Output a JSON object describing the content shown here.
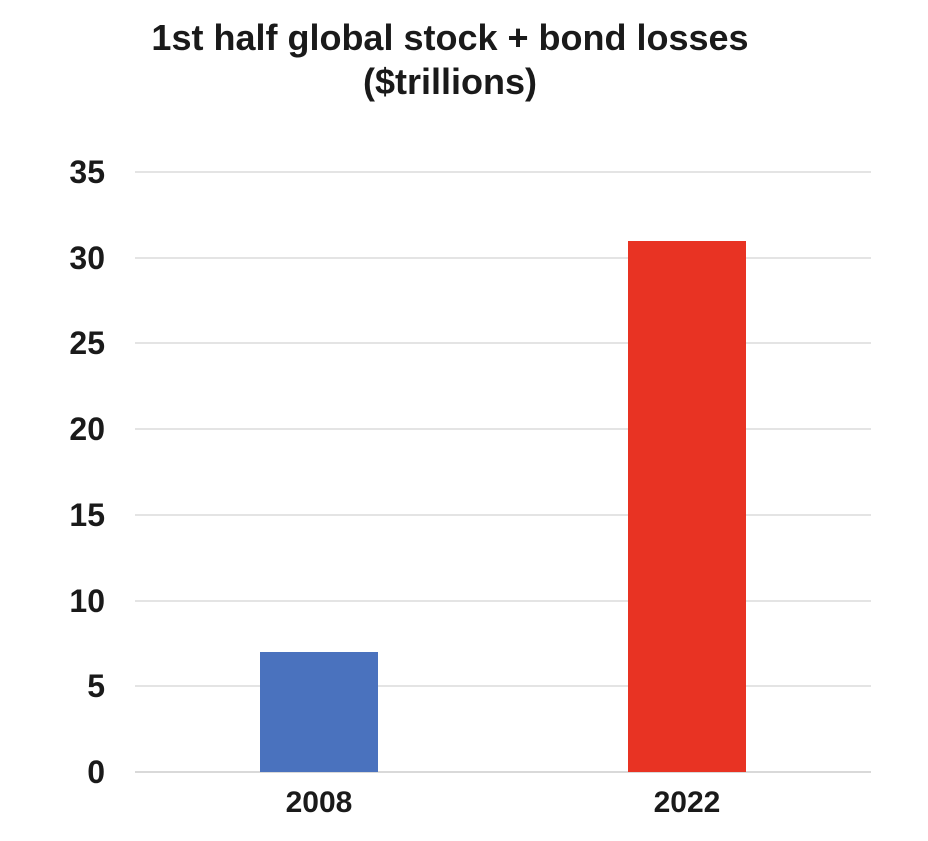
{
  "page": {
    "background": "#ffffff",
    "text_color": "#1a1a1a"
  },
  "chart_data": {
    "type": "bar",
    "title": "1st half global stock + bond losses",
    "subtitle": "($trillions)",
    "categories": [
      "2008",
      "2022"
    ],
    "values": [
      7,
      31
    ],
    "series": [
      {
        "name": "1st half global stock + bond losses ($trillions)",
        "values": [
          7,
          31
        ]
      }
    ],
    "bar_colors": [
      "#4A72BE",
      "#E83323"
    ],
    "xlabel": "",
    "ylabel": "",
    "ylim": [
      0,
      35
    ],
    "y_ticks": [
      0,
      5,
      10,
      15,
      20,
      25,
      30,
      35
    ],
    "grid": "horizontal",
    "gridline_color": "#e4e4e4",
    "legend": "none"
  }
}
